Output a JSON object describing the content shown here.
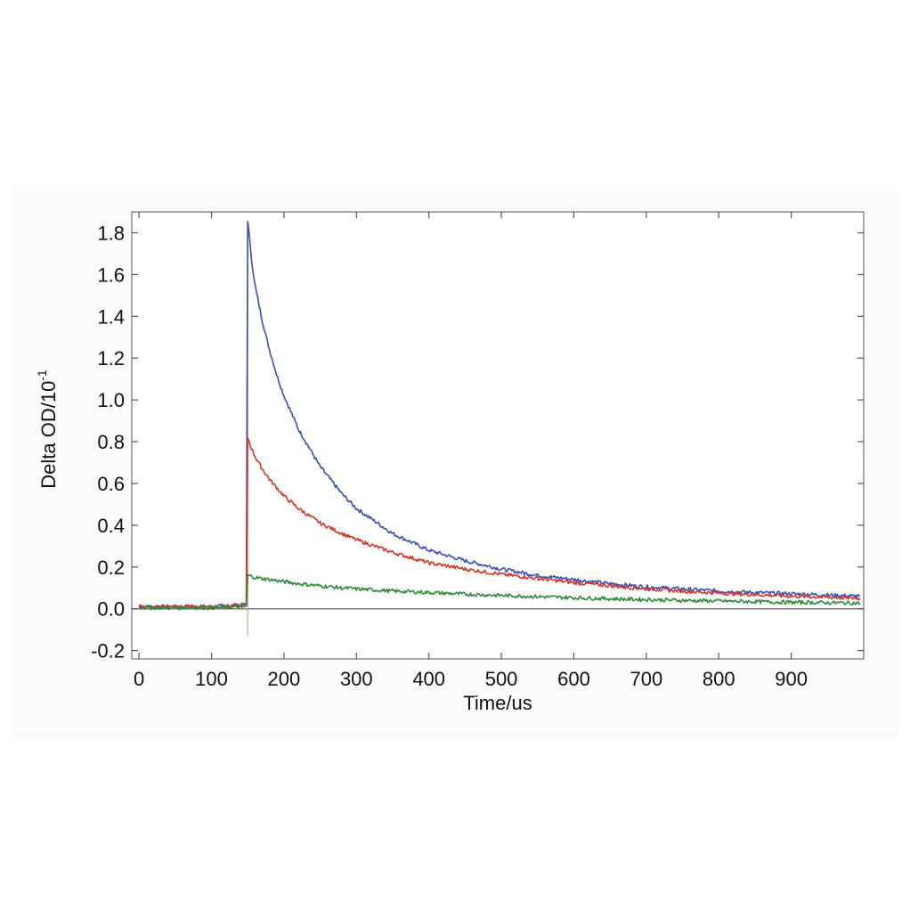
{
  "chart_data": {
    "type": "line",
    "title": "",
    "xlabel": "Time/us",
    "ylabel": {
      "base": "Delta OD/10",
      "superscript": "-1"
    },
    "xlim": [
      -10,
      1000
    ],
    "ylim": [
      -0.24,
      1.9
    ],
    "x_ticks": [
      0,
      100,
      200,
      300,
      400,
      500,
      600,
      700,
      800,
      900
    ],
    "x_tick_labels": [
      "0",
      "100",
      "200",
      "300",
      "400",
      "500",
      "600",
      "700",
      "800",
      "900"
    ],
    "y_ticks": [
      -0.2,
      0.0,
      0.2,
      0.4,
      0.6,
      0.8,
      1.0,
      1.2,
      1.4,
      1.6,
      1.8
    ],
    "y_tick_labels": [
      "-0.2",
      "0.0",
      "0.2",
      "0.4",
      "0.6",
      "0.8",
      "1.0",
      "1.2",
      "1.4",
      "1.6",
      "1.8"
    ],
    "grid": false,
    "legend": "none",
    "zero_line": true,
    "series": [
      {
        "color": "#3a4fb0",
        "x": [
          0,
          100,
          148,
          150,
          155,
          160,
          170,
          180,
          190,
          200,
          220,
          250,
          280,
          300,
          350,
          400,
          450,
          500,
          550,
          600,
          650,
          700,
          750,
          800,
          850,
          900,
          950,
          995
        ],
        "y": [
          0.01,
          0.01,
          0.02,
          1.86,
          1.68,
          1.55,
          1.38,
          1.24,
          1.12,
          1.02,
          0.86,
          0.68,
          0.55,
          0.48,
          0.36,
          0.28,
          0.23,
          0.19,
          0.16,
          0.14,
          0.12,
          0.105,
          0.095,
          0.085,
          0.078,
          0.072,
          0.066,
          0.06
        ]
      },
      {
        "color": "#d0382b",
        "x": [
          0,
          100,
          148,
          150,
          155,
          160,
          170,
          180,
          190,
          200,
          220,
          250,
          280,
          300,
          350,
          400,
          450,
          500,
          550,
          600,
          650,
          700,
          750,
          800,
          850,
          900,
          950,
          995
        ],
        "y": [
          0.01,
          0.01,
          0.015,
          0.82,
          0.77,
          0.73,
          0.67,
          0.62,
          0.58,
          0.54,
          0.48,
          0.41,
          0.36,
          0.33,
          0.27,
          0.22,
          0.19,
          0.165,
          0.145,
          0.125,
          0.11,
          0.095,
          0.085,
          0.075,
          0.068,
          0.06,
          0.055,
          0.05
        ]
      },
      {
        "color": "#2e8b3a",
        "x": [
          0,
          100,
          148,
          150,
          155,
          160,
          170,
          180,
          190,
          200,
          220,
          250,
          280,
          300,
          350,
          400,
          450,
          500,
          550,
          600,
          650,
          700,
          750,
          800,
          850,
          900,
          950,
          995
        ],
        "y": [
          0.005,
          0.005,
          0.01,
          0.16,
          0.155,
          0.15,
          0.145,
          0.14,
          0.135,
          0.13,
          0.12,
          0.11,
          0.1,
          0.095,
          0.085,
          0.078,
          0.07,
          0.064,
          0.058,
          0.053,
          0.048,
          0.044,
          0.04,
          0.037,
          0.034,
          0.031,
          0.029,
          0.027
        ]
      }
    ]
  }
}
